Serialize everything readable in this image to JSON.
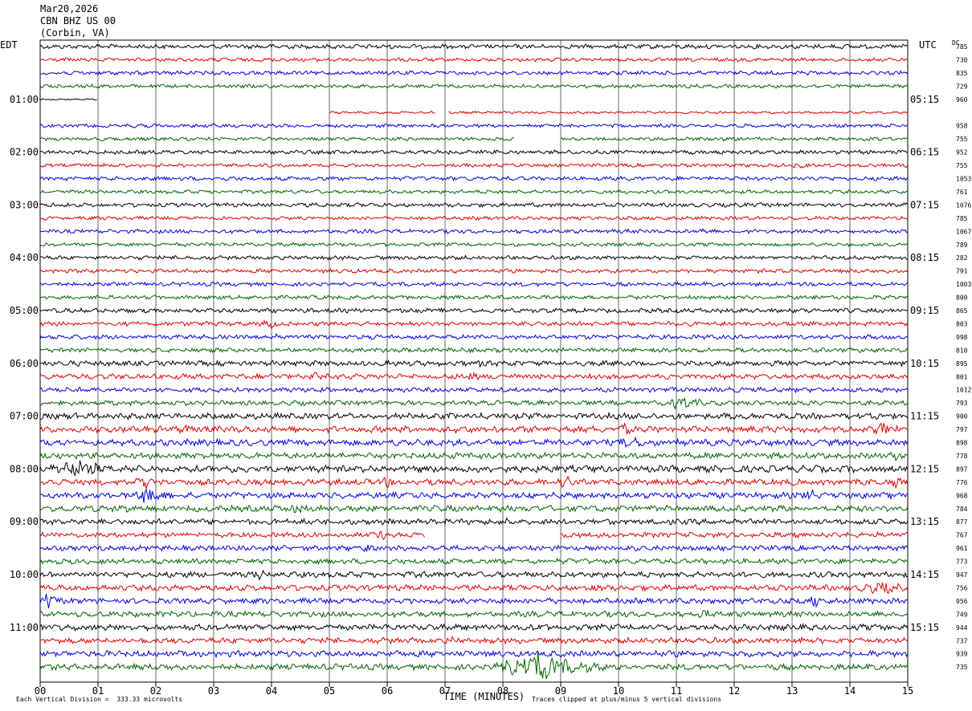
{
  "header": {
    "date": "Mar20,2026",
    "station": "CBN BHZ US 00",
    "location": "(Corbin, VA)"
  },
  "left_tz": "EDT",
  "right_tz": "UTC",
  "dc_label": "DC",
  "footer": {
    "vertical_division": "Each Vertical Division =  333.33 microvolts",
    "clip_note": "Traces clipped at plus/minus 5 vertical divisions"
  },
  "colors": {
    "trace_cycle": [
      "#000000",
      "#e00000",
      "#0000e0",
      "#006400"
    ],
    "grid": "#000000"
  },
  "chart_data": {
    "type": "line",
    "xlabel": "TIME (MINUTES)",
    "xlim": [
      0,
      15
    ],
    "x_ticks": [
      "00",
      "01",
      "02",
      "03",
      "04",
      "05",
      "06",
      "07",
      "08",
      "09",
      "10",
      "11",
      "12",
      "13",
      "14",
      "15"
    ],
    "left_hour_labels": [
      "01:00",
      "02:00",
      "03:00",
      "04:00",
      "05:00",
      "06:00",
      "07:00",
      "08:00",
      "09:00",
      "10:00",
      "11:00"
    ],
    "right_hour_labels": [
      "05:15",
      "06:15",
      "07:15",
      "08:15",
      "09:15",
      "10:15",
      "11:15",
      "12:15",
      "13:15",
      "14:15",
      "15:15"
    ],
    "rows": [
      {
        "dc": "785",
        "amp": 2.2,
        "gaps": []
      },
      {
        "dc": "730",
        "amp": 1.8,
        "gaps": []
      },
      {
        "dc": "835",
        "amp": 2.0,
        "gaps": []
      },
      {
        "dc": "729",
        "amp": 1.8,
        "gaps": []
      },
      {
        "dc": "960",
        "amp": 0.8,
        "gaps": [
          [
            1.0,
            15.0
          ]
        ]
      },
      {
        "dc": "",
        "amp": 1.2,
        "gaps": [
          [
            0.0,
            5.0
          ],
          [
            6.85,
            7.05
          ]
        ]
      },
      {
        "dc": "958",
        "amp": 1.8,
        "gaps": []
      },
      {
        "dc": "755",
        "amp": 1.8,
        "gaps": [
          [
            8.2,
            9.0
          ]
        ]
      },
      {
        "dc": "952",
        "amp": 2.0,
        "gaps": []
      },
      {
        "dc": "755",
        "amp": 1.8,
        "gaps": []
      },
      {
        "dc": "1053",
        "amp": 2.0,
        "gaps": []
      },
      {
        "dc": "761",
        "amp": 1.8,
        "gaps": []
      },
      {
        "dc": "1076",
        "amp": 2.0,
        "gaps": []
      },
      {
        "dc": "785",
        "amp": 1.8,
        "gaps": []
      },
      {
        "dc": "1067",
        "amp": 2.0,
        "gaps": []
      },
      {
        "dc": "789",
        "amp": 1.8,
        "gaps": []
      },
      {
        "dc": "282",
        "amp": 2.0,
        "gaps": []
      },
      {
        "dc": "791",
        "amp": 2.0,
        "gaps": []
      },
      {
        "dc": "1003",
        "amp": 2.0,
        "gaps": []
      },
      {
        "dc": "800",
        "amp": 2.0,
        "gaps": []
      },
      {
        "dc": "865",
        "amp": 2.2,
        "gaps": []
      },
      {
        "dc": "803",
        "amp": 2.2,
        "gaps": []
      },
      {
        "dc": "998",
        "amp": 2.2,
        "gaps": []
      },
      {
        "dc": "810",
        "amp": 2.2,
        "gaps": []
      },
      {
        "dc": "895",
        "amp": 2.6,
        "gaps": []
      },
      {
        "dc": "801",
        "amp": 2.6,
        "gaps": []
      },
      {
        "dc": "1012",
        "amp": 2.4,
        "gaps": []
      },
      {
        "dc": "793",
        "amp": 2.4,
        "gaps": []
      },
      {
        "dc": "900",
        "amp": 3.0,
        "gaps": []
      },
      {
        "dc": "797",
        "amp": 3.2,
        "gaps": []
      },
      {
        "dc": "898",
        "amp": 3.2,
        "gaps": []
      },
      {
        "dc": "778",
        "amp": 3.0,
        "gaps": []
      },
      {
        "dc": "897",
        "amp": 3.4,
        "gaps": []
      },
      {
        "dc": "776",
        "amp": 3.0,
        "gaps": []
      },
      {
        "dc": "968",
        "amp": 3.0,
        "gaps": []
      },
      {
        "dc": "784",
        "amp": 3.0,
        "gaps": []
      },
      {
        "dc": "877",
        "amp": 2.8,
        "gaps": []
      },
      {
        "dc": "767",
        "amp": 2.6,
        "gaps": [
          [
            6.65,
            9.0
          ]
        ]
      },
      {
        "dc": "961",
        "amp": 2.6,
        "gaps": []
      },
      {
        "dc": "773",
        "amp": 2.6,
        "gaps": []
      },
      {
        "dc": "947",
        "amp": 2.8,
        "gaps": []
      },
      {
        "dc": "756",
        "amp": 2.8,
        "gaps": []
      },
      {
        "dc": "956",
        "amp": 2.8,
        "gaps": []
      },
      {
        "dc": "749",
        "amp": 2.8,
        "gaps": []
      },
      {
        "dc": "944",
        "amp": 3.0,
        "gaps": []
      },
      {
        "dc": "737",
        "amp": 2.8,
        "gaps": []
      },
      {
        "dc": "939",
        "amp": 3.0,
        "gaps": []
      },
      {
        "dc": "735",
        "amp": 3.0,
        "gaps": []
      }
    ],
    "events": [
      {
        "row": 9,
        "x": 13.1,
        "width": 0.25,
        "amp": 6
      },
      {
        "row": 14,
        "x": 11.45,
        "width": 0.25,
        "amp": 5
      },
      {
        "row": 21,
        "x": 4.0,
        "width": 0.6,
        "amp": 5
      },
      {
        "row": 22,
        "x": 4.1,
        "width": 0.7,
        "amp": 4
      },
      {
        "row": 24,
        "x": 7.6,
        "width": 0.8,
        "amp": 4
      },
      {
        "row": 25,
        "x": 4.7,
        "width": 0.8,
        "amp": 5
      },
      {
        "row": 25,
        "x": 7.4,
        "width": 1.0,
        "amp": 5
      },
      {
        "row": 27,
        "x": 11.1,
        "width": 0.6,
        "amp": 10
      },
      {
        "row": 28,
        "x": 12.0,
        "width": 0.5,
        "amp": 4
      },
      {
        "row": 29,
        "x": 2.5,
        "width": 0.5,
        "amp": 6
      },
      {
        "row": 29,
        "x": 10.1,
        "width": 0.4,
        "amp": 7
      },
      {
        "row": 29,
        "x": 14.6,
        "width": 0.8,
        "amp": 7
      },
      {
        "row": 30,
        "x": 10.2,
        "width": 1.0,
        "amp": 6
      },
      {
        "row": 31,
        "x": 14.8,
        "width": 0.5,
        "amp": 6
      },
      {
        "row": 32,
        "x": 0.6,
        "width": 1.4,
        "amp": 10
      },
      {
        "row": 33,
        "x": 1.8,
        "width": 0.5,
        "amp": 8
      },
      {
        "row": 33,
        "x": 6.0,
        "width": 0.6,
        "amp": 6
      },
      {
        "row": 33,
        "x": 9.1,
        "width": 0.6,
        "amp": 7
      },
      {
        "row": 33,
        "x": 14.8,
        "width": 0.4,
        "amp": 6
      },
      {
        "row": 34,
        "x": 1.9,
        "width": 0.9,
        "amp": 10
      },
      {
        "row": 34,
        "x": 13.3,
        "width": 0.5,
        "amp": 7
      },
      {
        "row": 35,
        "x": 1.4,
        "width": 0.6,
        "amp": 6
      },
      {
        "row": 35,
        "x": 4.4,
        "width": 0.8,
        "amp": 6
      },
      {
        "row": 36,
        "x": 8.1,
        "width": 0.4,
        "amp": 5
      },
      {
        "row": 37,
        "x": 5.9,
        "width": 0.5,
        "amp": 7
      },
      {
        "row": 37,
        "x": 11.5,
        "width": 0.6,
        "amp": 5
      },
      {
        "row": 38,
        "x": 5.6,
        "width": 0.6,
        "amp": 5
      },
      {
        "row": 40,
        "x": 3.8,
        "width": 0.4,
        "amp": 6
      },
      {
        "row": 40,
        "x": 6.6,
        "width": 0.4,
        "amp": 5
      },
      {
        "row": 41,
        "x": 9.6,
        "width": 0.6,
        "amp": 5
      },
      {
        "row": 41,
        "x": 14.5,
        "width": 1.0,
        "amp": 8
      },
      {
        "row": 42,
        "x": 0.15,
        "width": 0.35,
        "amp": 10
      },
      {
        "row": 42,
        "x": 13.4,
        "width": 0.4,
        "amp": 7
      },
      {
        "row": 43,
        "x": 11.5,
        "width": 0.6,
        "amp": 5
      },
      {
        "row": 44,
        "x": 8.6,
        "width": 0.5,
        "amp": 5
      },
      {
        "row": 45,
        "x": 7.1,
        "width": 0.6,
        "amp": 5
      },
      {
        "row": 45,
        "x": 13.1,
        "width": 0.5,
        "amp": 5
      },
      {
        "row": 47,
        "x": 8.5,
        "width": 1.8,
        "amp": 16
      }
    ]
  }
}
